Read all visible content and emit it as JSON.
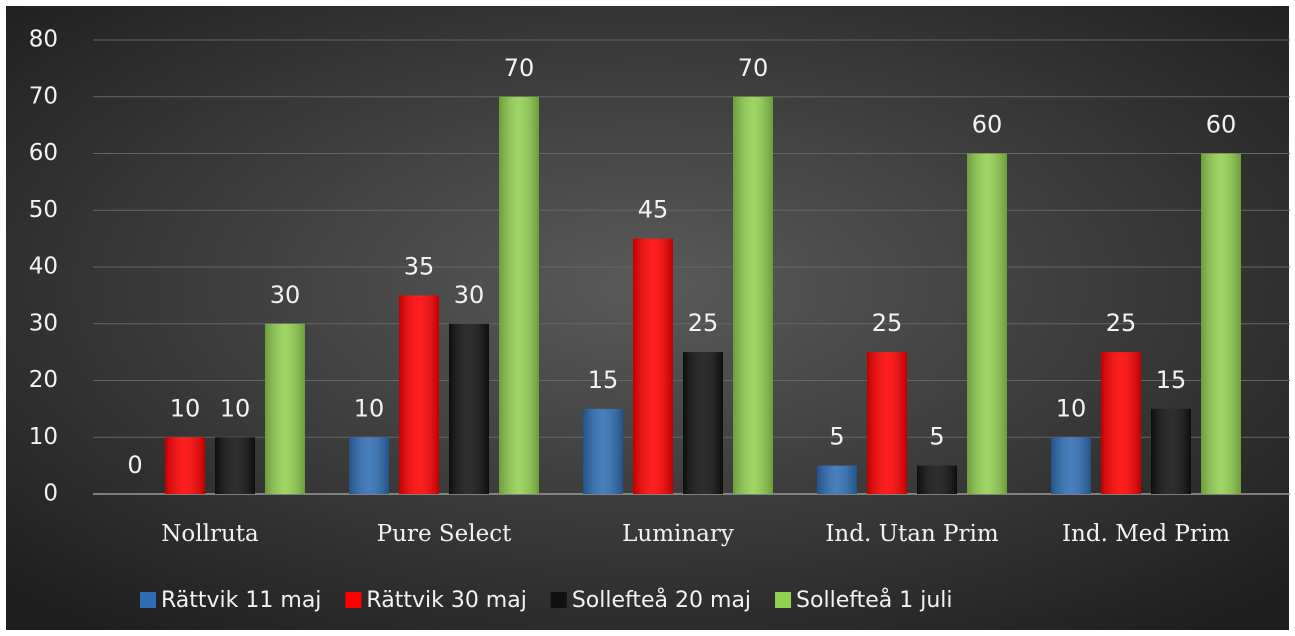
{
  "chart_data": {
    "type": "bar",
    "categories": [
      "Nollruta",
      "Pure Select",
      "Luminary",
      "Ind. Utan Prim",
      "Ind. Med Prim"
    ],
    "series": [
      {
        "name": "Rättvik 11 maj",
        "color": "#2e6db4",
        "values": [
          0,
          10,
          15,
          5,
          10
        ]
      },
      {
        "name": "Rättvik 30 maj",
        "color": "#ff0000",
        "values": [
          10,
          35,
          45,
          25,
          25
        ]
      },
      {
        "name": "Sollefteå 20 maj",
        "color": "#111111",
        "values": [
          10,
          30,
          25,
          5,
          15
        ]
      },
      {
        "name": "Sollefteå 1 juli",
        "color": "#92d050",
        "values": [
          30,
          70,
          70,
          60,
          60
        ]
      }
    ],
    "ylim": [
      0,
      80
    ],
    "yticks": [
      0,
      10,
      20,
      30,
      40,
      50,
      60,
      70,
      80
    ],
    "grid": true,
    "legend": "bottom"
  }
}
